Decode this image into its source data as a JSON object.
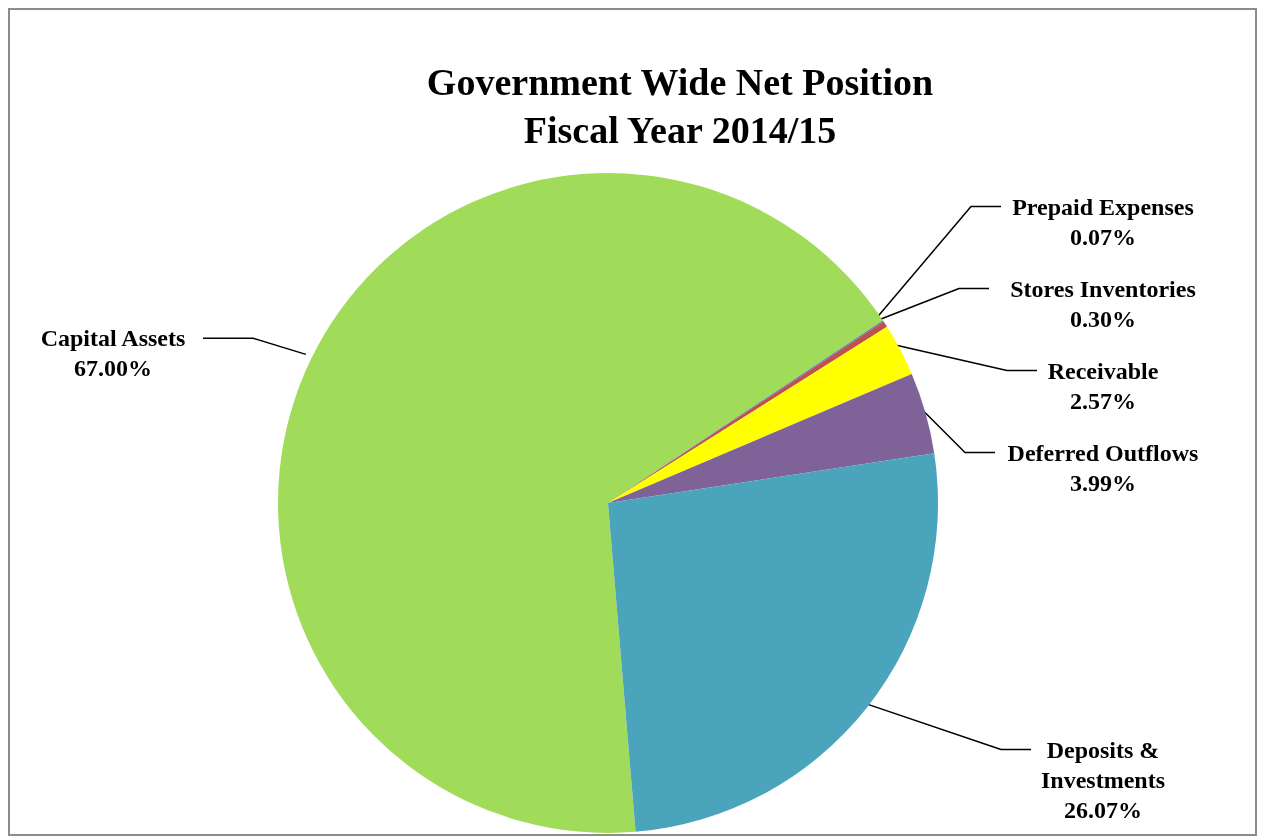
{
  "chart_data": {
    "type": "pie",
    "title": "Government Wide Net Position\nFiscal Year 2014/15",
    "categories": [
      "Capital Assets",
      "Prepaid Expenses",
      "Stores Inventories",
      "Receivable",
      "Deferred Outflows",
      "Deposits & Investments"
    ],
    "values": [
      67.0,
      0.07,
      0.3,
      2.57,
      3.99,
      26.07
    ],
    "value_labels": [
      "67.00%",
      "0.07%",
      "0.30%",
      "2.57%",
      "3.99%",
      "26.07%"
    ],
    "colors": [
      "#a0dc5a",
      "#4f81bd",
      "#c0504d",
      "#ffff00",
      "#7f6298",
      "#4aa4bb"
    ],
    "legend": false
  }
}
